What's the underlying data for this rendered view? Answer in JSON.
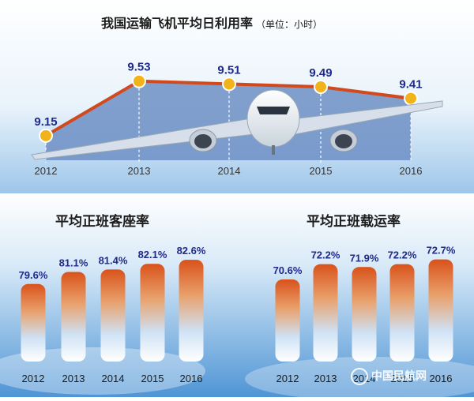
{
  "chart_data": [
    {
      "type": "line",
      "title": "我国运输飞机平均日利用率",
      "unit_note": "（单位：小时）",
      "categories": [
        "2012",
        "2013",
        "2014",
        "2015",
        "2016"
      ],
      "series": [
        {
          "name": "平均日利用率",
          "values": [
            9.15,
            9.53,
            9.51,
            9.49,
            9.41
          ]
        }
      ],
      "value_labels": [
        "9.15",
        "9.53",
        "9.51",
        "9.49",
        "9.41"
      ],
      "ylim": [
        9.1,
        9.6
      ]
    },
    {
      "type": "bar",
      "title": "平均正班客座率",
      "categories": [
        "2012",
        "2013",
        "2014",
        "2015",
        "2016"
      ],
      "series": [
        {
          "name": "平均正班客座率",
          "values": [
            79.6,
            81.1,
            81.4,
            82.1,
            82.6
          ]
        }
      ],
      "value_labels": [
        "79.6%",
        "81.1%",
        "81.4%",
        "82.1%",
        "82.6%"
      ],
      "ylim": [
        70,
        83
      ]
    },
    {
      "type": "bar",
      "title": "平均正班载运率",
      "categories": [
        "2012",
        "2013",
        "2014",
        "2015",
        "2016"
      ],
      "series": [
        {
          "name": "平均正班载运率",
          "values": [
            70.6,
            72.2,
            71.9,
            72.2,
            72.7
          ]
        }
      ],
      "value_labels": [
        "70.6%",
        "72.2%",
        "71.9%",
        "72.2%",
        "72.7%"
      ],
      "ylim": [
        62,
        73
      ]
    }
  ],
  "watermark": "中国民航网",
  "colors": {
    "line": "#d14a1e",
    "fill": "#6d8fc4",
    "marker": "#f2b21a",
    "value_text": "#1f2a8a",
    "bar_top": "#d9521b",
    "bar_bottom": "#ffffff"
  }
}
